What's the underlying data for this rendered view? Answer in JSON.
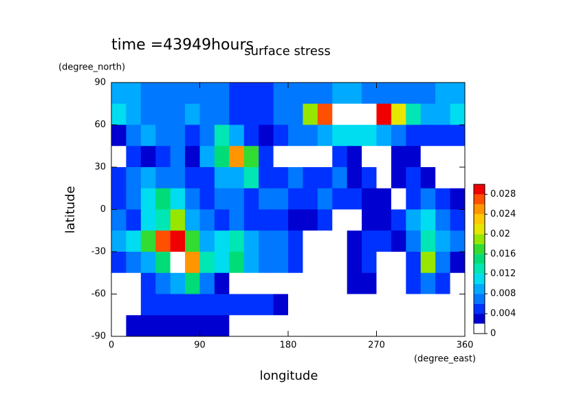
{
  "chart_data": {
    "type": "contour",
    "title": "surface stress",
    "subtitle": "time =43949hours",
    "xlabel": "longitude",
    "ylabel": "latitude",
    "xunit": "(degree_east)",
    "yunit": "(degree_north)",
    "xlim": [
      0,
      360
    ],
    "ylim": [
      -90,
      90
    ],
    "xticks": [
      0,
      90,
      180,
      270,
      360
    ],
    "yticks": [
      -90,
      -60,
      -30,
      0,
      30,
      60,
      90
    ],
    "x": [
      7.5,
      22.5,
      37.5,
      52.5,
      67.5,
      82.5,
      97.5,
      112.5,
      127.5,
      142.5,
      157.5,
      172.5,
      187.5,
      202.5,
      217.5,
      232.5,
      247.5,
      262.5,
      277.5,
      292.5,
      307.5,
      322.5,
      337.5,
      352.5
    ],
    "y": [
      82.5,
      67.5,
      52.5,
      37.5,
      22.5,
      7.5,
      -7.5,
      -22.5,
      -37.5,
      -52.5,
      -67.5,
      -82.5
    ],
    "z": [
      [
        0.008,
        0.008,
        0.007,
        0.006,
        0.006,
        0.006,
        0.006,
        0.006,
        0.005,
        0.005,
        0.005,
        0.006,
        0.006,
        0.006,
        0.007,
        0.008,
        0.008,
        0.007,
        0.006,
        0.006,
        0.006,
        0.007,
        0.008,
        0.008
      ],
      [
        0.01,
        0.008,
        0.006,
        0.007,
        0.006,
        0.008,
        0.006,
        0.006,
        0.005,
        0.004,
        0.005,
        0.006,
        0.006,
        0.018,
        0.026,
        0.032,
        0.032,
        0.03,
        0.028,
        0.02,
        0.012,
        0.008,
        0.008,
        0.01
      ],
      [
        0.002,
        0.006,
        0.008,
        0.006,
        0.006,
        0.005,
        0.006,
        0.012,
        0.008,
        0.004,
        0.003,
        0.005,
        0.006,
        0.006,
        0.008,
        0.01,
        0.01,
        0.01,
        0.008,
        0.006,
        0.005,
        0.004,
        0.005,
        0.004
      ],
      [
        0.001,
        0.004,
        0.003,
        0.004,
        0.006,
        0.003,
        0.008,
        0.014,
        0.024,
        0.016,
        0.004,
        0.001,
        0.001,
        0.001,
        0.001,
        0.004,
        0.002,
        0.001,
        0.001,
        0.003,
        0.002,
        0.001,
        0.001,
        0.001
      ],
      [
        0.004,
        0.006,
        0.008,
        0.006,
        0.006,
        0.004,
        0.005,
        0.008,
        0.008,
        0.012,
        0.004,
        0.004,
        0.006,
        0.005,
        0.004,
        0.006,
        0.002,
        0.004,
        0.001,
        0.003,
        0.004,
        0.002,
        0.001,
        0.001
      ],
      [
        0.004,
        0.006,
        0.01,
        0.014,
        0.01,
        0.006,
        0.004,
        0.006,
        0.006,
        0.004,
        0.006,
        0.006,
        0.005,
        0.004,
        0.006,
        0.004,
        0.004,
        0.003,
        0.002,
        0.001,
        0.004,
        0.006,
        0.004,
        0.003
      ],
      [
        0.006,
        0.004,
        0.01,
        0.012,
        0.018,
        0.008,
        0.006,
        0.005,
        0.006,
        0.004,
        0.004,
        0.004,
        0.003,
        0.002,
        0.004,
        0.001,
        0.001,
        0.002,
        0.003,
        0.004,
        0.008,
        0.01,
        0.006,
        0.004
      ],
      [
        0.008,
        0.01,
        0.016,
        0.026,
        0.028,
        0.016,
        0.008,
        0.01,
        0.012,
        0.008,
        0.006,
        0.006,
        0.004,
        0.001,
        0.001,
        0.001,
        0.002,
        0.004,
        0.004,
        0.003,
        0.006,
        0.012,
        0.008,
        0.006
      ],
      [
        0.004,
        0.006,
        0.008,
        0.014,
        0.032,
        0.024,
        0.012,
        0.01,
        0.014,
        0.008,
        0.006,
        0.006,
        0.004,
        0.001,
        0.001,
        0.001,
        0.002,
        0.004,
        0.001,
        0.001,
        0.004,
        0.018,
        0.006,
        0.002
      ],
      [
        0.001,
        0.001,
        0.004,
        0.006,
        0.008,
        0.014,
        0.006,
        0.002,
        0.001,
        0.001,
        0.001,
        0.001,
        0.001,
        0.001,
        0.001,
        0.001,
        0.002,
        0.003,
        0.001,
        0.001,
        0.004,
        0.006,
        0.004,
        0.001
      ],
      [
        0.001,
        0.001,
        0.004,
        0.005,
        0.004,
        0.004,
        0.004,
        0.004,
        0.004,
        0.004,
        0.004,
        0.003,
        0.001,
        0.001,
        0.001,
        0.001,
        0.001,
        0.001,
        0.001,
        0.001,
        0.001,
        0.001,
        0.001,
        0.001
      ],
      [
        0.001,
        0.002,
        0.003,
        0.003,
        0.003,
        0.003,
        0.003,
        0.002,
        0.001,
        0.001,
        0.001,
        0.001,
        0.001,
        0.001,
        0.001,
        0.001,
        0.001,
        0.001,
        0.001,
        0.001,
        0.001,
        0.001,
        0.001,
        0.001
      ]
    ],
    "levels": [
      0,
      0.002,
      0.004,
      0.006,
      0.008,
      0.01,
      0.012,
      0.014,
      0.016,
      0.018,
      0.02,
      0.022,
      0.024,
      0.026,
      0.028,
      0.03
    ],
    "colors": [
      "#ffffff",
      "#0000d0",
      "#0032ff",
      "#0078ff",
      "#00aaff",
      "#00dcf0",
      "#00e6b4",
      "#00dc78",
      "#32dc32",
      "#96e600",
      "#e6e600",
      "#ffc800",
      "#ff9600",
      "#ff5000",
      "#f00000"
    ],
    "over_color": "#ffffff",
    "colorbar_ticks": [
      0,
      0.004,
      0.008,
      0.012,
      0.016,
      0.02,
      0.024,
      0.028
    ]
  }
}
